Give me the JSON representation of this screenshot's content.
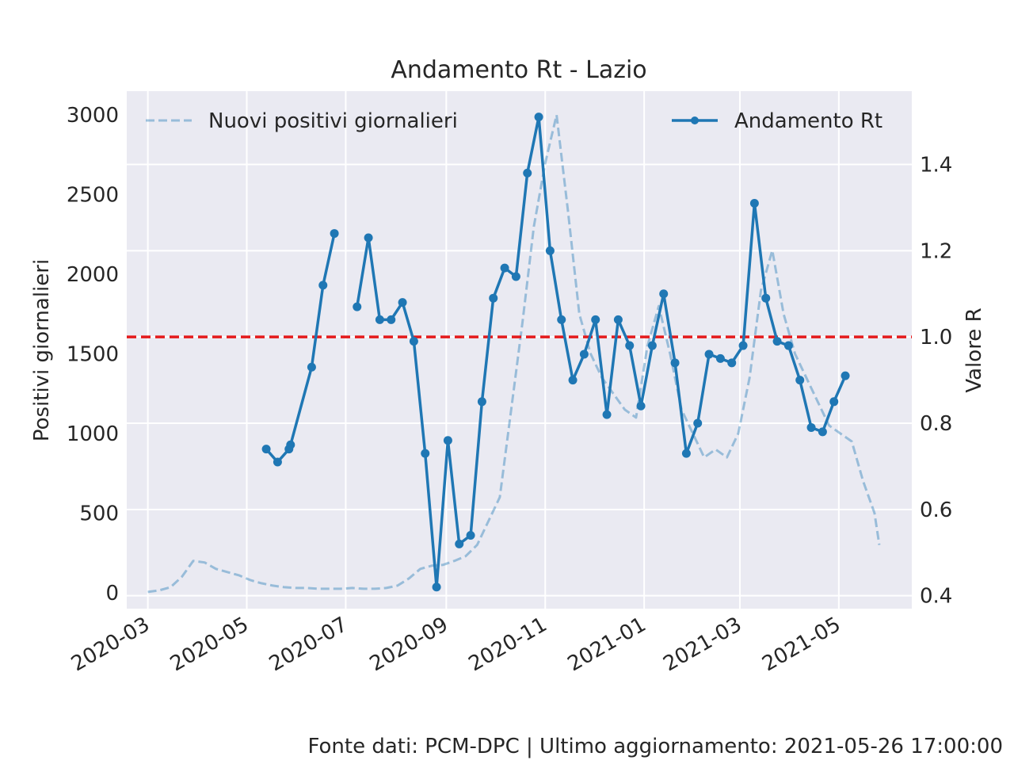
{
  "chart_data": {
    "type": "line",
    "title": "Andamento Rt - Lazio",
    "ylabel_left": "Positivi giornalieri",
    "ylabel_right": "Valore R",
    "ylim_left": [
      -100,
      3150
    ],
    "ylim_right": [
      0.37,
      1.57
    ],
    "xlim": [
      "2020-02-17",
      "2021-06-15"
    ],
    "x_ticks": [
      "2020-03-01",
      "2020-05-01",
      "2020-07-01",
      "2020-09-01",
      "2020-11-01",
      "2021-01-01",
      "2021-03-01",
      "2021-05-01"
    ],
    "x_tick_labels": [
      "2020-03",
      "2020-05",
      "2020-07",
      "2020-09",
      "2020-11",
      "2021-01",
      "2021-03",
      "2021-05"
    ],
    "y_ticks_left": [
      0,
      500,
      1000,
      1500,
      2000,
      2500,
      3000
    ],
    "y_tick_labels_left": [
      "0",
      "500",
      "1000",
      "1500",
      "2000",
      "2500",
      "3000"
    ],
    "y_ticks_right": [
      0.4,
      0.6,
      0.8,
      1.0,
      1.2,
      1.4
    ],
    "y_tick_labels_right": [
      "0.4",
      "0.6",
      "0.8",
      "1.0",
      "1.2",
      "1.4"
    ],
    "reference_line": {
      "axis": "right",
      "value": 1.0,
      "color": "#e41a1c"
    },
    "grid": true,
    "colors": {
      "background": "#eaeaf2",
      "grid": "#ffffff",
      "rt": "#1f77b4",
      "positivi": "#1f77b4"
    },
    "legend_left": {
      "placement": "top-left",
      "label": "Nuovi positivi giornalieri"
    },
    "legend_right": {
      "placement": "top-right",
      "label": "Andamento Rt"
    },
    "series": [
      {
        "name": "Nuovi positivi giornalieri",
        "axis": "left",
        "style": "dashed",
        "alpha": 0.4,
        "x": [
          "2020-03-01",
          "2020-03-08",
          "2020-03-15",
          "2020-03-22",
          "2020-03-29",
          "2020-04-05",
          "2020-04-12",
          "2020-04-19",
          "2020-04-26",
          "2020-05-03",
          "2020-05-10",
          "2020-05-17",
          "2020-05-24",
          "2020-05-31",
          "2020-06-07",
          "2020-06-14",
          "2020-06-21",
          "2020-06-28",
          "2020-07-05",
          "2020-07-12",
          "2020-07-19",
          "2020-07-26",
          "2020-08-02",
          "2020-08-09",
          "2020-08-16",
          "2020-08-23",
          "2020-08-30",
          "2020-09-06",
          "2020-09-13",
          "2020-09-20",
          "2020-09-27",
          "2020-10-04",
          "2020-10-11",
          "2020-10-18",
          "2020-10-25",
          "2020-11-01",
          "2020-11-08",
          "2020-11-15",
          "2020-11-22",
          "2020-11-29",
          "2020-12-06",
          "2020-12-13",
          "2020-12-20",
          "2020-12-27",
          "2021-01-03",
          "2021-01-10",
          "2021-01-17",
          "2021-01-24",
          "2021-01-31",
          "2021-02-07",
          "2021-02-14",
          "2021-02-21",
          "2021-02-28",
          "2021-03-07",
          "2021-03-14",
          "2021-03-21",
          "2021-03-28",
          "2021-04-04",
          "2021-04-11",
          "2021-04-18",
          "2021-04-25",
          "2021-05-02",
          "2021-05-09",
          "2021-05-16",
          "2021-05-23",
          "2021-05-26"
        ],
        "values": [
          5,
          15,
          35,
          100,
          200,
          190,
          150,
          130,
          110,
          80,
          60,
          45,
          35,
          30,
          30,
          25,
          25,
          25,
          30,
          25,
          25,
          30,
          45,
          90,
          150,
          170,
          175,
          200,
          230,
          300,
          450,
          600,
          1150,
          1700,
          2300,
          2700,
          3000,
          2400,
          1750,
          1500,
          1350,
          1250,
          1150,
          1100,
          1550,
          1800,
          1500,
          1150,
          1000,
          850,
          900,
          850,
          1000,
          1350,
          1900,
          2150,
          1750,
          1500,
          1350,
          1200,
          1050,
          1000,
          950,
          700,
          500,
          300
        ]
      },
      {
        "name": "Andamento Rt",
        "axis": "right",
        "style": "solid-markers",
        "segments": [
          {
            "x": [
              "2020-05-13",
              "2020-05-20",
              "2020-05-27",
              "2020-05-28",
              "2020-06-10",
              "2020-06-17",
              "2020-06-24"
            ],
            "values": [
              0.74,
              0.71,
              0.74,
              0.75,
              0.93,
              1.12,
              1.24
            ]
          },
          {
            "x": [
              "2020-07-08",
              "2020-07-15",
              "2020-07-22",
              "2020-07-29",
              "2020-08-05",
              "2020-08-12",
              "2020-08-19",
              "2020-08-26",
              "2020-09-02",
              "2020-09-09",
              "2020-09-16",
              "2020-09-23",
              "2020-09-30",
              "2020-10-07",
              "2020-10-14",
              "2020-10-21",
              "2020-10-28",
              "2020-11-04",
              "2020-11-11",
              "2020-11-18",
              "2020-11-25",
              "2020-12-02",
              "2020-12-09",
              "2020-12-16",
              "2020-12-23",
              "2020-12-30",
              "2021-01-06",
              "2021-01-13",
              "2021-01-20",
              "2021-01-27",
              "2021-02-03",
              "2021-02-10",
              "2021-02-17",
              "2021-02-24",
              "2021-03-03",
              "2021-03-10",
              "2021-03-17",
              "2021-03-24",
              "2021-03-31",
              "2021-04-07",
              "2021-04-14",
              "2021-04-21",
              "2021-04-28",
              "2021-05-05"
            ],
            "values": [
              1.07,
              1.23,
              1.04,
              1.04,
              1.08,
              0.99,
              0.73,
              0.42,
              0.76,
              0.52,
              0.54,
              0.85,
              1.09,
              1.16,
              1.14,
              1.38,
              1.51,
              1.2,
              1.04,
              0.9,
              0.96,
              1.04,
              0.82,
              1.04,
              0.98,
              0.84,
              0.98,
              1.1,
              0.94,
              0.73,
              0.8,
              0.96,
              0.95,
              0.94,
              0.98,
              1.31,
              1.09,
              0.99,
              0.98,
              0.9,
              0.79,
              0.78,
              0.85,
              0.91
            ]
          }
        ]
      }
    ]
  },
  "footer": {
    "source_text": "Fonte dati: PCM-DPC | Ultimo aggiornamento: 2021-05-26 17:00:00"
  }
}
